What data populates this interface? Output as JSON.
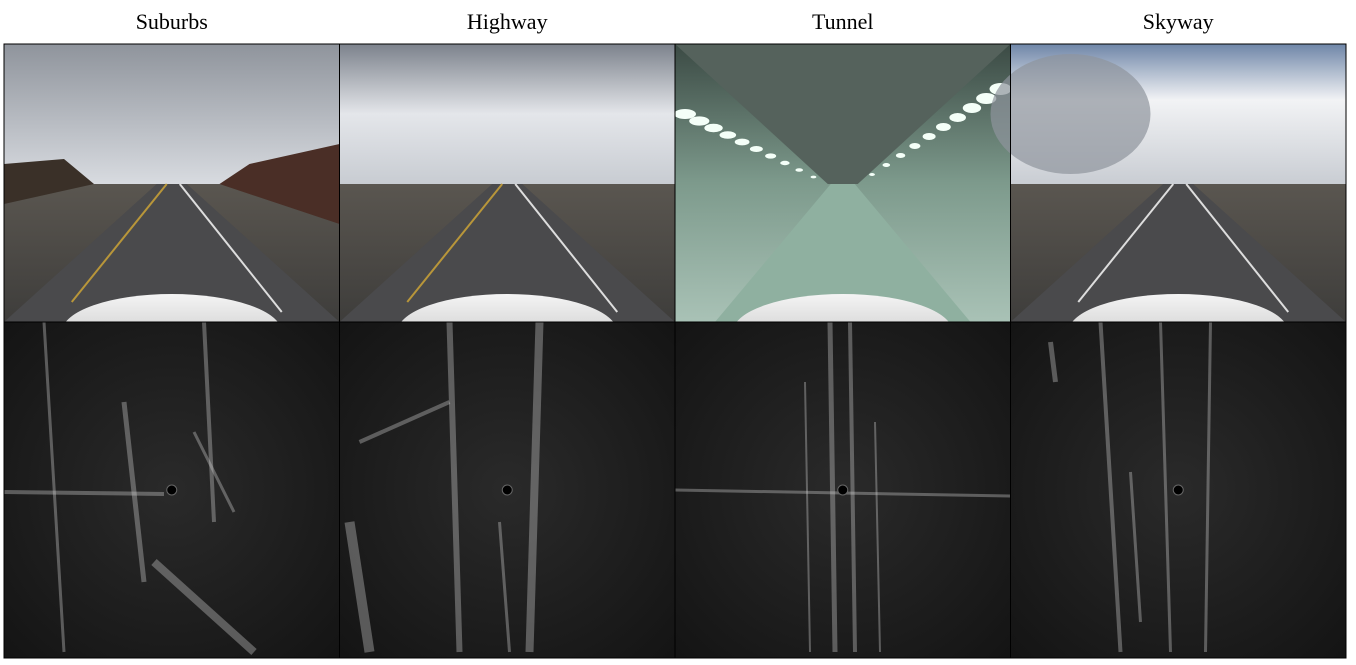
{
  "columns": [
    {
      "label": "Suburbs"
    },
    {
      "label": "Highway"
    },
    {
      "label": "Tunnel"
    },
    {
      "label": "Skyway"
    }
  ]
}
